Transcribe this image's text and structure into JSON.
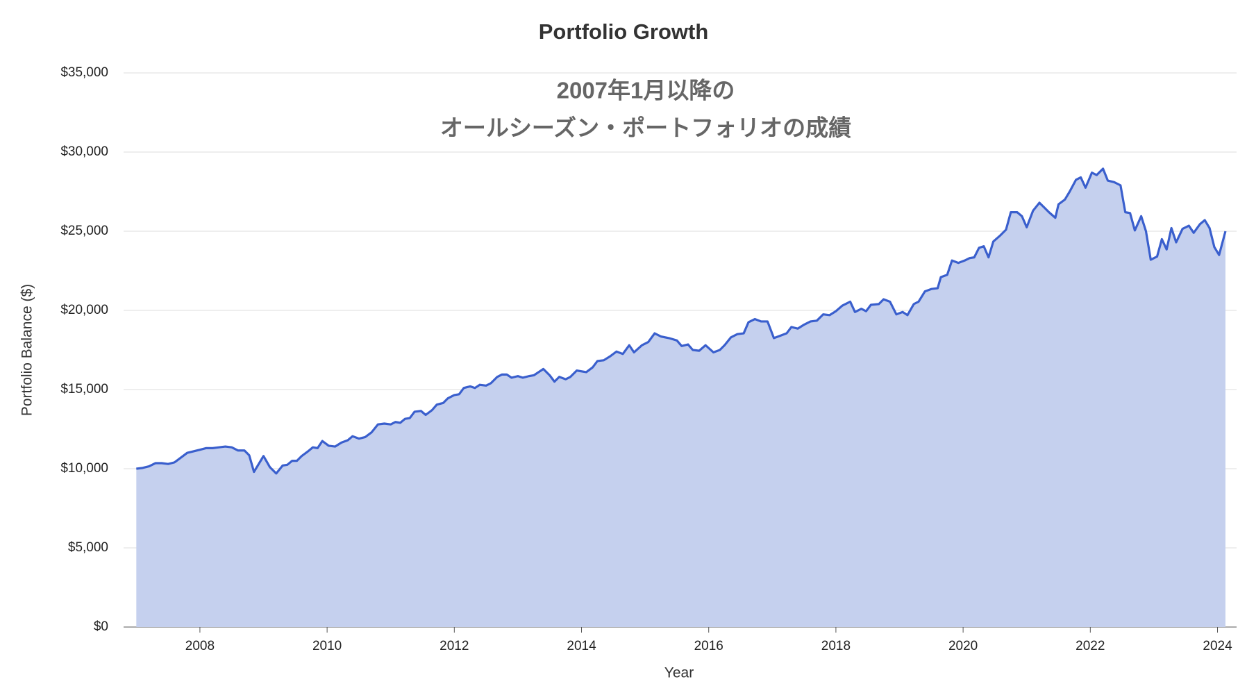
{
  "chart_data": {
    "type": "area",
    "title": "Portfolio Growth",
    "subtitle": [
      "2007年1月以降の",
      "オールシーズン・ポートフォリオの成績"
    ],
    "x_label": "Year",
    "y_label": "Portfolio Balance ($)",
    "color": "#3a5fcd",
    "fill_color": "#c5d0ee",
    "grid": true,
    "xlim": [
      2006.8,
      2024.3
    ],
    "ylim": [
      0,
      35000
    ],
    "xticks": [
      2008,
      2010,
      2012,
      2014,
      2016,
      2018,
      2020,
      2022,
      2024
    ],
    "yticks": [
      {
        "value": 0,
        "label": "$0"
      },
      {
        "value": 5000,
        "label": "$5,000"
      },
      {
        "value": 10000,
        "label": "$10,000"
      },
      {
        "value": 15000,
        "label": "$15,000"
      },
      {
        "value": 20000,
        "label": "$20,000"
      },
      {
        "value": 25000,
        "label": "$25,000"
      },
      {
        "value": 30000,
        "label": "$30,000"
      },
      {
        "value": 35000,
        "label": "$35,000"
      }
    ],
    "x": [
      2007.0,
      2007.1,
      2007.2,
      2007.3,
      2007.4,
      2007.5,
      2007.6,
      2007.7,
      2007.8,
      2007.9,
      2008.0,
      2008.1,
      2008.2,
      2008.3,
      2008.4,
      2008.5,
      2008.6,
      2008.7,
      2008.775,
      2008.85,
      2009.0,
      2009.1,
      2009.2,
      2009.3,
      2009.375,
      2009.45,
      2009.525,
      2009.6,
      2009.7,
      2009.775,
      2009.85,
      2009.925,
      2010.025,
      2010.125,
      2010.225,
      2010.325,
      2010.4,
      2010.5,
      2010.6,
      2010.7,
      2010.8,
      2010.9,
      2011.0,
      2011.075,
      2011.15,
      2011.225,
      2011.3,
      2011.375,
      2011.475,
      2011.55,
      2011.65,
      2011.725,
      2011.825,
      2011.9,
      2012.0,
      2012.075,
      2012.15,
      2012.25,
      2012.325,
      2012.4,
      2012.5,
      2012.575,
      2012.675,
      2012.75,
      2012.825,
      2012.9,
      2013.0,
      2013.075,
      2013.175,
      2013.25,
      2013.325,
      2013.4,
      2013.5,
      2013.575,
      2013.65,
      2013.75,
      2013.825,
      2013.925,
      2014.075,
      2014.175,
      2014.25,
      2014.35,
      2014.45,
      2014.55,
      2014.65,
      2014.75,
      2014.825,
      2014.95,
      2015.05,
      2015.15,
      2015.25,
      2015.375,
      2015.5,
      2015.575,
      2015.675,
      2015.75,
      2015.85,
      2015.95,
      2016.075,
      2016.175,
      2016.25,
      2016.35,
      2016.45,
      2016.55,
      2016.625,
      2016.725,
      2016.825,
      2016.925,
      2017.025,
      2017.125,
      2017.225,
      2017.3,
      2017.4,
      2017.5,
      2017.6,
      2017.7,
      2017.8,
      2017.9,
      2018.0,
      2018.1,
      2018.225,
      2018.3,
      2018.4,
      2018.475,
      2018.55,
      2018.675,
      2018.75,
      2018.85,
      2018.95,
      2019.05,
      2019.125,
      2019.225,
      2019.3,
      2019.4,
      2019.5,
      2019.6,
      2019.65,
      2019.75,
      2019.825,
      2019.925,
      2020.025,
      2020.1,
      2020.175,
      2020.25,
      2020.325,
      2020.4,
      2020.475,
      2020.575,
      2020.675,
      2020.75,
      2020.85,
      2020.925,
      2021.0,
      2021.1,
      2021.2,
      2021.275,
      2021.35,
      2021.45,
      2021.5,
      2021.6,
      2021.675,
      2021.775,
      2021.85,
      2021.925,
      2022.025,
      2022.1,
      2022.2,
      2022.275,
      2022.375,
      2022.475,
      2022.55,
      2022.625,
      2022.7,
      2022.8,
      2022.875,
      2022.95,
      2023.05,
      2023.125,
      2023.2,
      2023.275,
      2023.35,
      2023.45,
      2023.55,
      2023.625,
      2023.725,
      2023.8,
      2023.875,
      2023.95,
      2024.025,
      2024.125
    ],
    "values": [
      10000,
      10050,
      10150,
      10350,
      10350,
      10300,
      10400,
      10700,
      11000,
      11100,
      11200,
      11300,
      11300,
      11350,
      11400,
      11350,
      11150,
      11150,
      10850,
      9800,
      10800,
      10100,
      9700,
      10200,
      10250,
      10500,
      10500,
      10800,
      11100,
      11350,
      11300,
      11750,
      11450,
      11400,
      11650,
      11800,
      12050,
      11900,
      12000,
      12300,
      12800,
      12850,
      12800,
      12950,
      12900,
      13150,
      13200,
      13600,
      13650,
      13400,
      13700,
      14050,
      14150,
      14450,
      14650,
      14700,
      15100,
      15200,
      15100,
      15300,
      15250,
      15400,
      15800,
      15950,
      15950,
      15750,
      15850,
      15750,
      15850,
      15900,
      16100,
      16300,
      15900,
      15500,
      15800,
      15650,
      15800,
      16200,
      16100,
      16400,
      16800,
      16850,
      17100,
      17400,
      17250,
      17800,
      17350,
      17800,
      18000,
      18550,
      18350,
      18250,
      18100,
      17750,
      17850,
      17500,
      17450,
      17800,
      17350,
      17500,
      17800,
      18300,
      18500,
      18550,
      19250,
      19450,
      19300,
      19300,
      18250,
      18400,
      18550,
      18950,
      18850,
      19100,
      19300,
      19350,
      19750,
      19700,
      19950,
      20300,
      20550,
      19900,
      20100,
      19950,
      20350,
      20400,
      20700,
      20550,
      19750,
      19900,
      19700,
      20400,
      20550,
      21200,
      21350,
      21400,
      22100,
      22250,
      23150,
      23000,
      23150,
      23300,
      23350,
      23950,
      24050,
      23350,
      24350,
      24700,
      25100,
      26200,
      26200,
      25950,
      25250,
      26300,
      26800,
      26500,
      26200,
      25850,
      26700,
      27000,
      27500,
      28250,
      28400,
      27750,
      28700,
      28550,
      28950,
      28200,
      28100,
      27900,
      26200,
      26150,
      25050,
      25950,
      25000,
      23200,
      23400,
      24500,
      23850,
      25200,
      24300,
      25150,
      25350,
      24900,
      25450,
      25700,
      25200,
      24000,
      23500,
      25000
    ]
  }
}
